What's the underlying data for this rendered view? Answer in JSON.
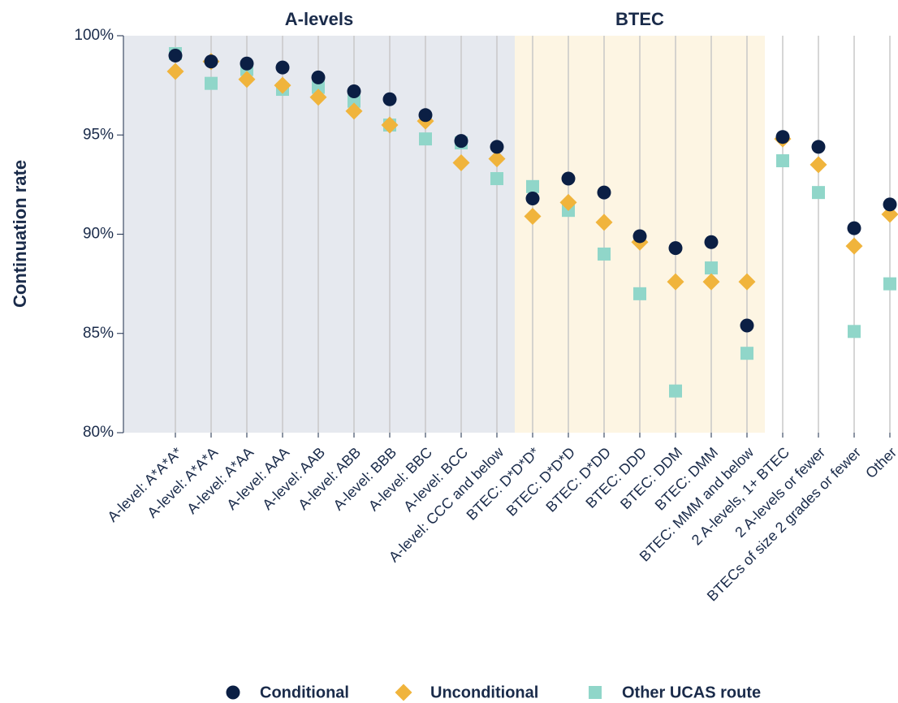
{
  "chart_data": {
    "type": "dot",
    "y_label": "Continuation rate",
    "categories": [
      "A-level: A*A*A*",
      "A-level: A*A*A",
      "A-level: A*AA",
      "A-level: AAA",
      "A-level: AAB",
      "A-level: ABB",
      "A-level: BBB",
      "A-level: BBC",
      "A-level: BCC",
      "A-level: CCC and below",
      "BTEC: D*D*D*",
      "BTEC: D*D*D",
      "BTEC: D*DD",
      "BTEC: DDD",
      "BTEC: DDM",
      "BTEC: DMM",
      "BTEC: MMM and below",
      "2 A-levels, 1+ BTEC",
      "2 A-levels or fewer",
      "BTECs of size 2 grades or fewer",
      "Other"
    ],
    "bands": [
      {
        "label": "A-levels",
        "start": "A-level: A*A*A*",
        "end": "A-level: CCC and below",
        "color": "#e6e9ef"
      },
      {
        "label": "BTEC",
        "start": "BTEC: D*D*D*",
        "end": "BTEC: MMM and below",
        "color": "#fdf5e3"
      }
    ],
    "series": [
      {
        "name": "Conditional",
        "marker": "circle",
        "color": "#0b1f44",
        "values": [
          99.0,
          98.7,
          98.6,
          98.4,
          97.9,
          97.2,
          96.8,
          96.0,
          94.7,
          94.4,
          91.8,
          92.8,
          92.1,
          89.9,
          89.3,
          89.6,
          85.4,
          94.9,
          94.4,
          90.3,
          91.5
        ]
      },
      {
        "name": "Unconditional",
        "marker": "diamond",
        "color": "#f0b43c",
        "values": [
          98.2,
          98.7,
          97.8,
          97.5,
          96.9,
          96.2,
          95.5,
          95.7,
          93.6,
          93.8,
          90.9,
          91.6,
          90.6,
          89.6,
          87.6,
          87.6,
          87.6,
          94.8,
          93.5,
          89.4,
          91.0
        ]
      },
      {
        "name": "Other UCAS route",
        "marker": "square",
        "color": "#90d6c9",
        "values": [
          99.1,
          97.6,
          98.3,
          97.3,
          97.4,
          96.7,
          95.5,
          94.8,
          94.6,
          92.8,
          92.4,
          91.2,
          89.0,
          87.0,
          82.1,
          88.3,
          84.0,
          93.7,
          92.1,
          85.1,
          87.5
        ]
      }
    ],
    "ylim": [
      80,
      100
    ],
    "yticks": [
      {
        "value": 80,
        "label": "80%"
      },
      {
        "value": 85,
        "label": "85%"
      },
      {
        "value": 90,
        "label": "90%"
      },
      {
        "value": 95,
        "label": "95%"
      },
      {
        "value": 100,
        "label": "100%"
      }
    ],
    "grid": true
  }
}
